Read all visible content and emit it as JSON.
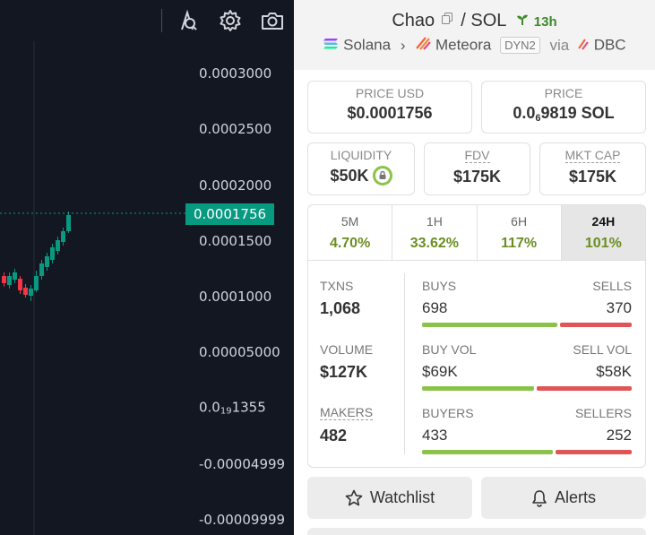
{
  "chart": {
    "y_axis_labels": [
      {
        "text": "0.0003000"
      },
      {
        "text": "0.0002500"
      },
      {
        "text": "0.0002000"
      },
      {
        "text": "0.0001500"
      },
      {
        "text": "0.0001000"
      },
      {
        "text": "0.00005000"
      },
      {
        "text_prefix": "0.0",
        "text_sub": "19",
        "text_suffix": "1355"
      },
      {
        "text": "-0.00004999"
      },
      {
        "text": "-0.00009999"
      }
    ],
    "current_price_tag": "0.0001756",
    "toolbar_icons": [
      "indicators-icon",
      "settings-gear-icon",
      "camera-icon"
    ],
    "colors": {
      "background": "#131722",
      "up": "#089981",
      "down": "#f23645",
      "price_tag": "#089981"
    }
  },
  "pair": {
    "base": "Chao",
    "separator": "/",
    "quote": "SOL",
    "age": "13h",
    "chain": "Solana",
    "dex": "Meteora",
    "dex_tag": "DYN2",
    "via_label": "via",
    "launchpad": "DBC"
  },
  "metrics": {
    "price_usd": {
      "label": "PRICE USD",
      "value": "$0.0001756"
    },
    "price_native": {
      "label": "PRICE",
      "value_prefix": "0.0",
      "value_sub": "6",
      "value_suffix": "9819 SOL"
    },
    "liquidity": {
      "label": "LIQUIDITY",
      "value": "$50K"
    },
    "fdv": {
      "label": "FDV",
      "value": "$175K"
    },
    "mkt_cap": {
      "label": "MKT CAP",
      "value": "$175K"
    }
  },
  "timeframes": [
    {
      "label": "5M",
      "change": "4.70%",
      "active": false
    },
    {
      "label": "1H",
      "change": "33.62%",
      "active": false
    },
    {
      "label": "6H",
      "change": "117%",
      "active": false
    },
    {
      "label": "24H",
      "change": "101%",
      "active": true
    }
  ],
  "stats": [
    {
      "left_label": "TXNS",
      "left_value": "1,068",
      "buy_label": "BUYS",
      "buy_value": "698",
      "sell_label": "SELLS",
      "sell_value": "370",
      "buy_fraction": 0.654
    },
    {
      "left_label": "VOLUME",
      "left_value": "$127K",
      "buy_label": "BUY VOL",
      "buy_value": "$69K",
      "sell_label": "SELL VOL",
      "sell_value": "$58K",
      "buy_fraction": 0.543
    },
    {
      "left_label": "MAKERS",
      "left_value": "482",
      "buy_label": "BUYERS",
      "buy_value": "433",
      "sell_label": "SELLERS",
      "sell_value": "252",
      "buy_fraction": 0.632
    }
  ],
  "actions": {
    "watchlist": "Watchlist",
    "alerts": "Alerts"
  },
  "colors": {
    "positive": "#6b8e23",
    "buy_bar": "#8bc34a",
    "sell_bar": "#e05555",
    "age_green": "#3c8a2a"
  }
}
